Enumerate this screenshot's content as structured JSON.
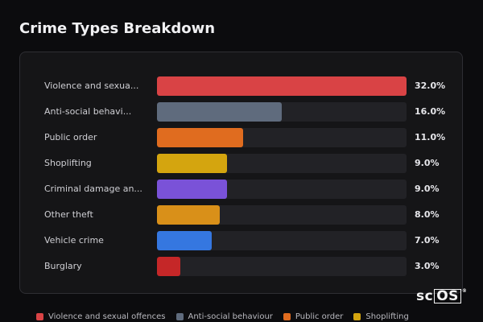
{
  "chart_data": {
    "type": "bar",
    "orientation": "horizontal",
    "title": "Crime Types Breakdown",
    "categories": [
      "Violence and sexua...",
      "Anti-social behavi...",
      "Public order",
      "Shoplifting",
      "Criminal damage an...",
      "Other theft",
      "Vehicle crime",
      "Burglary"
    ],
    "values": [
      32.0,
      16.0,
      11.0,
      9.0,
      9.0,
      8.0,
      7.0,
      3.0
    ],
    "value_labels": [
      "32.0%",
      "16.0%",
      "11.0%",
      "9.0%",
      "9.0%",
      "8.0%",
      "7.0%",
      "3.0%"
    ],
    "colors": [
      "#d94345",
      "#5f6b7d",
      "#e06c1f",
      "#d4a50f",
      "#7a52d8",
      "#d99019",
      "#3577e0",
      "#c52728"
    ],
    "xlim": [
      0,
      32
    ],
    "unit": "%",
    "grid": false,
    "legend_position": "bottom",
    "legend": [
      {
        "label": "Violence and sexual offences",
        "color": "#d94345"
      },
      {
        "label": "Anti-social behaviour",
        "color": "#5f6b7d"
      },
      {
        "label": "Public order",
        "color": "#e06c1f"
      },
      {
        "label": "Shoplifting",
        "color": "#d4a50f"
      }
    ]
  },
  "branding": {
    "logo_prefix": "sc",
    "logo_box": "OS",
    "logo_mark": "®"
  }
}
